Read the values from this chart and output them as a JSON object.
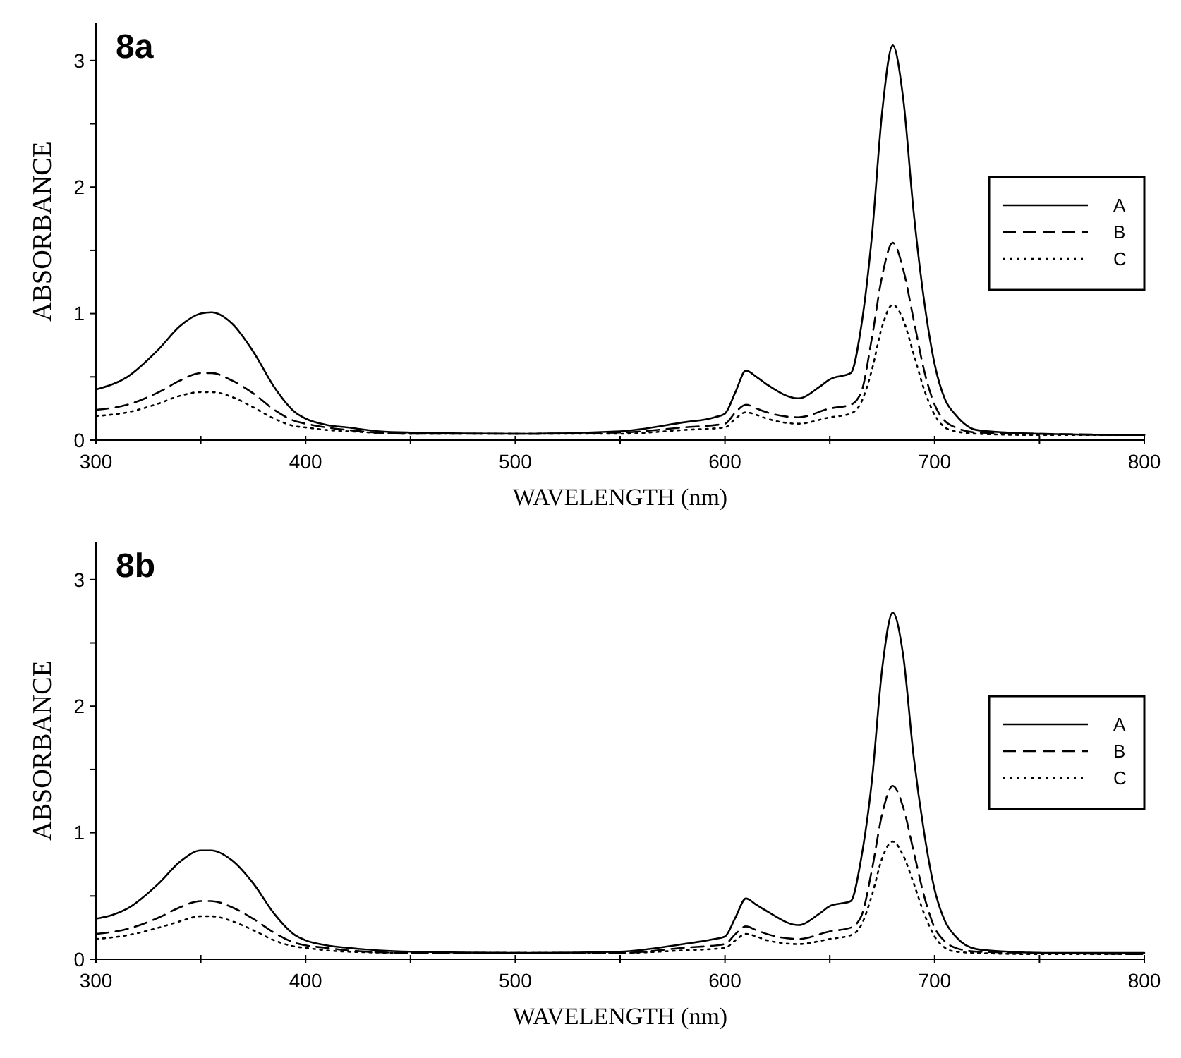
{
  "chart_data": [
    {
      "type": "line",
      "title": "8a",
      "xlabel": "WAVELENGTH (nm)",
      "ylabel": "ABSORBANCE",
      "xlim": [
        300,
        800
      ],
      "ylim": [
        0,
        3.3
      ],
      "xticks": [
        300,
        {
          "value": 350,
          "label": null
        },
        400,
        {
          "value": 450,
          "label": null
        },
        500,
        {
          "value": 550,
          "label": null
        },
        600,
        {
          "value": 650,
          "label": null
        },
        700,
        {
          "value": 750,
          "label": null
        },
        800
      ],
      "yticks": [
        0,
        {
          "value": 0.5,
          "label": null
        },
        1,
        {
          "value": 1.5,
          "label": null
        },
        2,
        {
          "value": 2.5,
          "label": null
        },
        3
      ],
      "grid": false,
      "legend": "right",
      "series": [
        {
          "name": "A",
          "color": "#000000",
          "line_style": "solid",
          "x": [
            300,
            315,
            330,
            340,
            350,
            355,
            365,
            375,
            385,
            395,
            400,
            410,
            420,
            435,
            450,
            500,
            550,
            580,
            595,
            600,
            605,
            610,
            615,
            620,
            635,
            645,
            650,
            660,
            665,
            670,
            675,
            680,
            685,
            690,
            695,
            700,
            705,
            710,
            720,
            735,
            750,
            800
          ],
          "values": [
            0.4,
            0.5,
            0.72,
            0.9,
            1.0,
            1.01,
            0.92,
            0.7,
            0.42,
            0.22,
            0.17,
            0.12,
            0.1,
            0.07,
            0.06,
            0.05,
            0.07,
            0.14,
            0.18,
            0.21,
            0.38,
            0.55,
            0.5,
            0.44,
            0.33,
            0.42,
            0.48,
            0.53,
            0.9,
            1.6,
            2.6,
            3.12,
            2.7,
            1.8,
            1.1,
            0.6,
            0.32,
            0.2,
            0.08,
            0.06,
            0.05,
            0.04
          ]
        },
        {
          "name": "B",
          "color": "#000000",
          "line_style": "dashed",
          "x": [
            300,
            315,
            330,
            340,
            350,
            355,
            365,
            375,
            385,
            395,
            400,
            410,
            420,
            450,
            500,
            550,
            580,
            600,
            605,
            610,
            615,
            620,
            635,
            650,
            660,
            665,
            670,
            675,
            680,
            685,
            690,
            695,
            700,
            705,
            710,
            720,
            750,
            800
          ],
          "values": [
            0.24,
            0.28,
            0.38,
            0.47,
            0.53,
            0.53,
            0.47,
            0.37,
            0.24,
            0.15,
            0.13,
            0.1,
            0.08,
            0.05,
            0.05,
            0.06,
            0.1,
            0.13,
            0.22,
            0.28,
            0.25,
            0.22,
            0.18,
            0.25,
            0.28,
            0.38,
            0.8,
            1.3,
            1.56,
            1.35,
            0.95,
            0.55,
            0.28,
            0.15,
            0.1,
            0.06,
            0.05,
            0.04
          ]
        },
        {
          "name": "C",
          "color": "#000000",
          "line_style": "dotted",
          "x": [
            300,
            315,
            330,
            340,
            350,
            355,
            365,
            375,
            385,
            395,
            400,
            410,
            420,
            450,
            500,
            550,
            580,
            600,
            605,
            610,
            615,
            620,
            635,
            650,
            660,
            665,
            670,
            675,
            680,
            685,
            690,
            695,
            700,
            705,
            710,
            720,
            750,
            800
          ],
          "values": [
            0.19,
            0.22,
            0.29,
            0.35,
            0.38,
            0.38,
            0.34,
            0.26,
            0.17,
            0.11,
            0.1,
            0.08,
            0.07,
            0.05,
            0.05,
            0.05,
            0.08,
            0.1,
            0.17,
            0.22,
            0.2,
            0.17,
            0.13,
            0.18,
            0.21,
            0.3,
            0.55,
            0.9,
            1.07,
            0.95,
            0.68,
            0.4,
            0.2,
            0.1,
            0.07,
            0.05,
            0.04,
            0.04
          ]
        }
      ]
    },
    {
      "type": "line",
      "title": "8b",
      "xlabel": "WAVELENGTH (nm)",
      "ylabel": "ABSORBANCE",
      "xlim": [
        300,
        800
      ],
      "ylim": [
        0,
        3.3
      ],
      "xticks": [
        300,
        {
          "value": 350,
          "label": null
        },
        400,
        {
          "value": 450,
          "label": null
        },
        500,
        {
          "value": 550,
          "label": null
        },
        600,
        {
          "value": 650,
          "label": null
        },
        700,
        {
          "value": 750,
          "label": null
        },
        800
      ],
      "yticks": [
        0,
        {
          "value": 0.5,
          "label": null
        },
        1,
        {
          "value": 1.5,
          "label": null
        },
        2,
        {
          "value": 2.5,
          "label": null
        },
        3
      ],
      "grid": false,
      "legend": "right",
      "series": [
        {
          "name": "A",
          "color": "#000000",
          "line_style": "solid",
          "x": [
            300,
            315,
            330,
            340,
            350,
            355,
            365,
            375,
            385,
            395,
            400,
            410,
            420,
            435,
            450,
            500,
            550,
            580,
            595,
            600,
            605,
            610,
            615,
            620,
            635,
            645,
            650,
            660,
            665,
            670,
            675,
            680,
            685,
            690,
            695,
            700,
            705,
            710,
            720,
            735,
            750,
            800
          ],
          "values": [
            0.32,
            0.4,
            0.6,
            0.77,
            0.86,
            0.86,
            0.78,
            0.6,
            0.36,
            0.19,
            0.15,
            0.11,
            0.09,
            0.07,
            0.06,
            0.05,
            0.06,
            0.12,
            0.16,
            0.18,
            0.33,
            0.48,
            0.43,
            0.38,
            0.27,
            0.36,
            0.42,
            0.46,
            0.8,
            1.4,
            2.3,
            2.74,
            2.4,
            1.6,
            1.0,
            0.55,
            0.3,
            0.18,
            0.08,
            0.06,
            0.05,
            0.05
          ]
        },
        {
          "name": "B",
          "color": "#000000",
          "line_style": "dashed",
          "x": [
            300,
            315,
            330,
            340,
            350,
            355,
            365,
            375,
            385,
            395,
            400,
            410,
            420,
            450,
            500,
            550,
            580,
            600,
            605,
            610,
            615,
            620,
            635,
            650,
            660,
            665,
            670,
            675,
            680,
            685,
            690,
            695,
            700,
            705,
            710,
            720,
            750,
            800
          ],
          "values": [
            0.2,
            0.24,
            0.33,
            0.41,
            0.46,
            0.46,
            0.41,
            0.32,
            0.21,
            0.13,
            0.11,
            0.09,
            0.07,
            0.05,
            0.05,
            0.05,
            0.09,
            0.12,
            0.2,
            0.26,
            0.23,
            0.2,
            0.16,
            0.22,
            0.25,
            0.34,
            0.7,
            1.15,
            1.37,
            1.2,
            0.85,
            0.5,
            0.25,
            0.14,
            0.09,
            0.06,
            0.05,
            0.04
          ]
        },
        {
          "name": "C",
          "color": "#000000",
          "line_style": "dotted",
          "x": [
            300,
            315,
            330,
            340,
            350,
            355,
            365,
            375,
            385,
            395,
            400,
            410,
            420,
            450,
            500,
            550,
            580,
            600,
            605,
            610,
            615,
            620,
            635,
            650,
            660,
            665,
            670,
            675,
            680,
            685,
            690,
            695,
            700,
            705,
            710,
            720,
            750,
            800
          ],
          "values": [
            0.16,
            0.19,
            0.25,
            0.3,
            0.34,
            0.34,
            0.3,
            0.23,
            0.15,
            0.1,
            0.09,
            0.07,
            0.06,
            0.05,
            0.05,
            0.05,
            0.07,
            0.09,
            0.15,
            0.2,
            0.18,
            0.15,
            0.12,
            0.16,
            0.19,
            0.27,
            0.5,
            0.8,
            0.93,
            0.82,
            0.6,
            0.36,
            0.18,
            0.09,
            0.06,
            0.05,
            0.04,
            0.04
          ]
        }
      ]
    }
  ]
}
